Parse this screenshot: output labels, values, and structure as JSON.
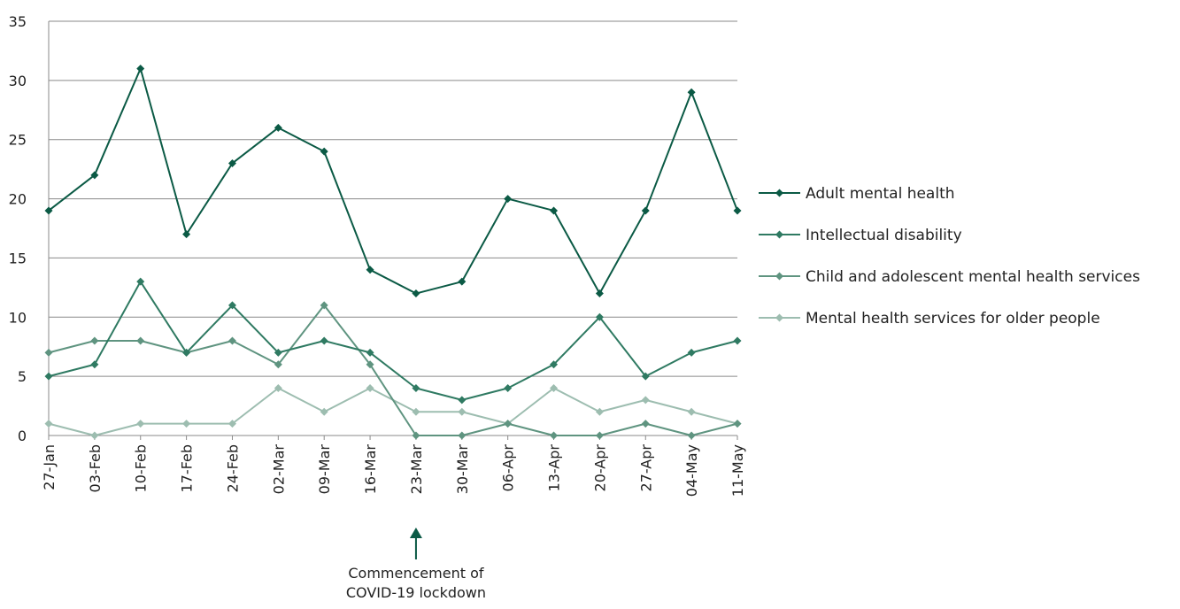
{
  "chart_data": {
    "type": "line",
    "title": "",
    "xlabel": "",
    "ylabel": "",
    "x": [
      "27-Jan",
      "03-Feb",
      "10-Feb",
      "17-Feb",
      "24-Feb",
      "02-Mar",
      "09-Mar",
      "16-Mar",
      "23-Mar",
      "30-Mar",
      "06-Apr",
      "13-Apr",
      "20-Apr",
      "27-Apr",
      "04-May",
      "11-May"
    ],
    "ylim": [
      0,
      35
    ],
    "yticks": [
      0,
      5,
      10,
      15,
      20,
      25,
      30,
      35
    ],
    "grid": true,
    "legend_position": "right",
    "series": [
      {
        "name": "Adult mental health",
        "color": "#0b5a45",
        "values": [
          19,
          22,
          31,
          17,
          23,
          26,
          24,
          14,
          12,
          13,
          20,
          19,
          12,
          19,
          29,
          19
        ]
      },
      {
        "name": "Intellectual disability",
        "color": "#2f7a62",
        "values": [
          5,
          6,
          13,
          7,
          11,
          7,
          8,
          7,
          4,
          3,
          4,
          6,
          10,
          5,
          7,
          8
        ]
      },
      {
        "name": "Child and adolescent mental health services",
        "color": "#5f9480",
        "values": [
          7,
          8,
          8,
          7,
          8,
          6,
          11,
          6,
          0,
          0,
          1,
          0,
          0,
          1,
          0,
          1
        ]
      },
      {
        "name": "Mental health services for older people",
        "color": "#9dbdb0",
        "values": [
          1,
          0,
          1,
          1,
          1,
          4,
          2,
          4,
          2,
          2,
          1,
          4,
          2,
          3,
          2,
          1
        ]
      }
    ],
    "annotations": [
      {
        "x": "23-Mar",
        "lines": [
          "Commencement of",
          "COVID-19 lockdown"
        ]
      }
    ]
  }
}
